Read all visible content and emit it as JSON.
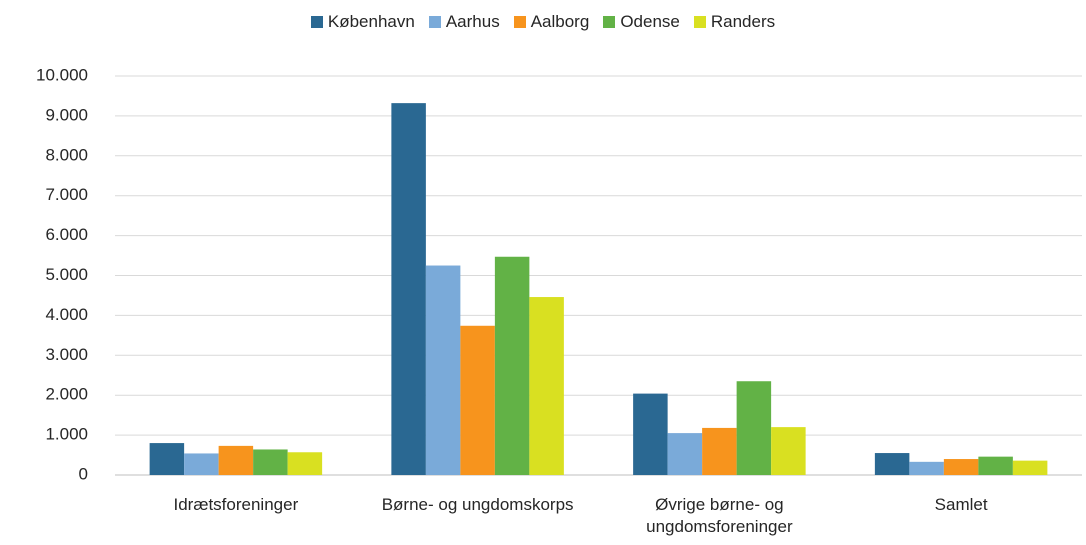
{
  "chart_data": {
    "type": "bar",
    "categories": [
      "Idrætsforeninger",
      "Børne- og ungdomskorps",
      "Øvrige børne- og ungdomsforeninger",
      "Samlet"
    ],
    "series": [
      {
        "name": "København",
        "color": "#2a6892",
        "values": [
          800,
          9320,
          2040,
          550
        ]
      },
      {
        "name": "Aarhus",
        "color": "#7aaad9",
        "values": [
          540,
          5250,
          1050,
          330
        ]
      },
      {
        "name": "Aalborg",
        "color": "#f7941d",
        "values": [
          730,
          3740,
          1180,
          400
        ]
      },
      {
        "name": "Odense",
        "color": "#62b246",
        "values": [
          640,
          5470,
          2350,
          460
        ]
      },
      {
        "name": "Randers",
        "color": "#d9e021",
        "values": [
          570,
          4460,
          1200,
          360
        ]
      }
    ],
    "ylim": [
      0,
      10000
    ],
    "yticks": [
      0,
      {
        "value": 1000,
        "label": "1.000"
      },
      {
        "value": 2000,
        "label": "2.000"
      },
      {
        "value": 3000,
        "label": "3.000"
      },
      {
        "value": 4000,
        "label": "4.000"
      },
      {
        "value": 5000,
        "label": "5.000"
      },
      {
        "value": 6000,
        "label": "6.000"
      },
      {
        "value": 7000,
        "label": "7.000"
      },
      {
        "value": 8000,
        "label": "8.000"
      },
      {
        "value": 9000,
        "label": "9.000"
      },
      {
        "value": 10000,
        "label": "10.000"
      }
    ],
    "grid": true,
    "legend": "top"
  }
}
